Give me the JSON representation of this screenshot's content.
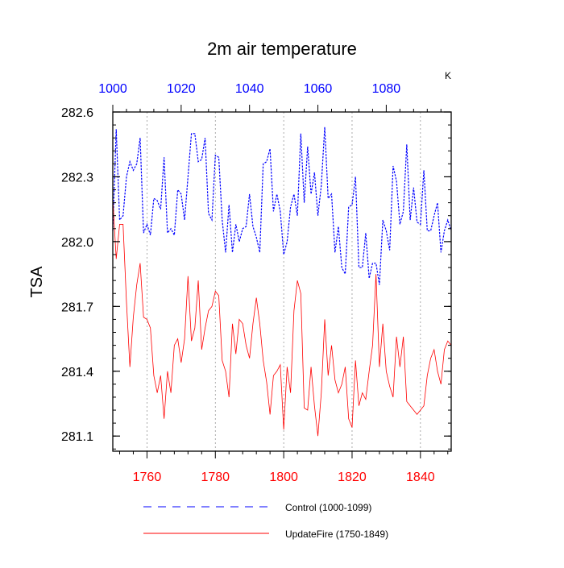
{
  "chart_data": {
    "type": "line",
    "title": "2m air temperature",
    "unit_label": "K",
    "ylabel": "TSA",
    "ylim": [
      281.03,
      282.6
    ],
    "y_ticks": [
      282.6,
      282.3,
      282.0,
      281.7,
      281.4,
      281.1
    ],
    "y_tick_labels": [
      "282.6",
      "282.3",
      "282.0",
      "281.7",
      "281.4",
      "281.1"
    ],
    "x_bottom": {
      "range": [
        1750,
        1849
      ],
      "ticks": [
        1760,
        1780,
        1800,
        1820,
        1840
      ],
      "tick_labels": [
        "1760",
        "1780",
        "1800",
        "1820",
        "1840"
      ],
      "color": "#ff0000"
    },
    "x_top": {
      "range": [
        1000,
        1099
      ],
      "ticks": [
        1000,
        1020,
        1040,
        1060,
        1080
      ],
      "tick_labels": [
        "1000",
        "1020",
        "1040",
        "1060",
        "1080"
      ],
      "color": "#0000ff"
    },
    "grid": "vertical dotted at bottom ticks",
    "legend_position": "bottom",
    "series": [
      {
        "name": "Control (1000-1099)",
        "axis": "top",
        "style": "dashed",
        "color": "#0000ff",
        "x_start": 1000,
        "values": [
          282.05,
          282.52,
          282.1,
          282.12,
          282.3,
          282.37,
          282.33,
          282.36,
          282.48,
          282.04,
          282.08,
          282.03,
          282.2,
          282.19,
          282.15,
          282.39,
          282.04,
          282.06,
          282.03,
          282.24,
          282.22,
          282.1,
          282.3,
          282.5,
          282.5,
          282.37,
          282.38,
          282.48,
          282.13,
          282.1,
          282.4,
          282.39,
          282.1,
          281.95,
          282.17,
          281.95,
          282.08,
          282.0,
          282.06,
          282.07,
          282.22,
          282.07,
          282.02,
          281.95,
          282.36,
          282.37,
          282.43,
          282.14,
          282.22,
          282.14,
          281.94,
          282.0,
          282.16,
          282.22,
          282.12,
          282.5,
          282.18,
          282.44,
          282.22,
          282.32,
          282.12,
          282.26,
          282.53,
          282.2,
          282.22,
          281.95,
          282.07,
          281.88,
          281.85,
          282.16,
          282.17,
          282.3,
          281.88,
          281.88,
          282.04,
          281.83,
          281.9,
          281.9,
          281.8,
          282.1,
          282.05,
          281.96,
          282.35,
          282.28,
          282.08,
          282.14,
          282.45,
          282.1,
          282.25,
          282.09,
          282.08,
          282.33,
          282.05,
          282.05,
          282.12,
          282.18,
          281.95,
          282.05,
          282.1,
          282.05
        ]
      },
      {
        "name": "UpdateFire (1750-1849)",
        "axis": "bottom",
        "style": "solid",
        "color": "#ff0000",
        "x_start": 1750,
        "values": [
          282.2,
          281.92,
          282.08,
          282.08,
          281.72,
          281.42,
          281.65,
          281.8,
          281.9,
          281.65,
          281.64,
          281.6,
          281.38,
          281.3,
          281.38,
          281.18,
          281.4,
          281.3,
          281.52,
          281.55,
          281.44,
          281.55,
          281.84,
          281.54,
          281.6,
          281.82,
          281.5,
          281.6,
          281.68,
          281.7,
          281.77,
          281.75,
          281.45,
          281.4,
          281.28,
          281.62,
          281.48,
          281.64,
          281.62,
          281.52,
          281.46,
          281.62,
          281.74,
          281.62,
          281.45,
          281.35,
          281.2,
          281.38,
          281.4,
          281.43,
          281.13,
          281.42,
          281.3,
          281.68,
          281.82,
          281.76,
          281.23,
          281.22,
          281.42,
          281.24,
          281.1,
          281.3,
          281.64,
          281.38,
          281.52,
          281.36,
          281.3,
          281.34,
          281.42,
          281.18,
          281.14,
          281.45,
          281.24,
          281.3,
          281.27,
          281.4,
          281.52,
          281.85,
          281.42,
          281.62,
          281.4,
          281.33,
          281.28,
          281.56,
          281.42,
          281.56,
          281.26,
          281.24,
          281.22,
          281.2,
          281.22,
          281.24,
          281.38,
          281.46,
          281.5,
          281.4,
          281.34,
          281.5,
          281.54,
          281.52
        ]
      }
    ]
  }
}
